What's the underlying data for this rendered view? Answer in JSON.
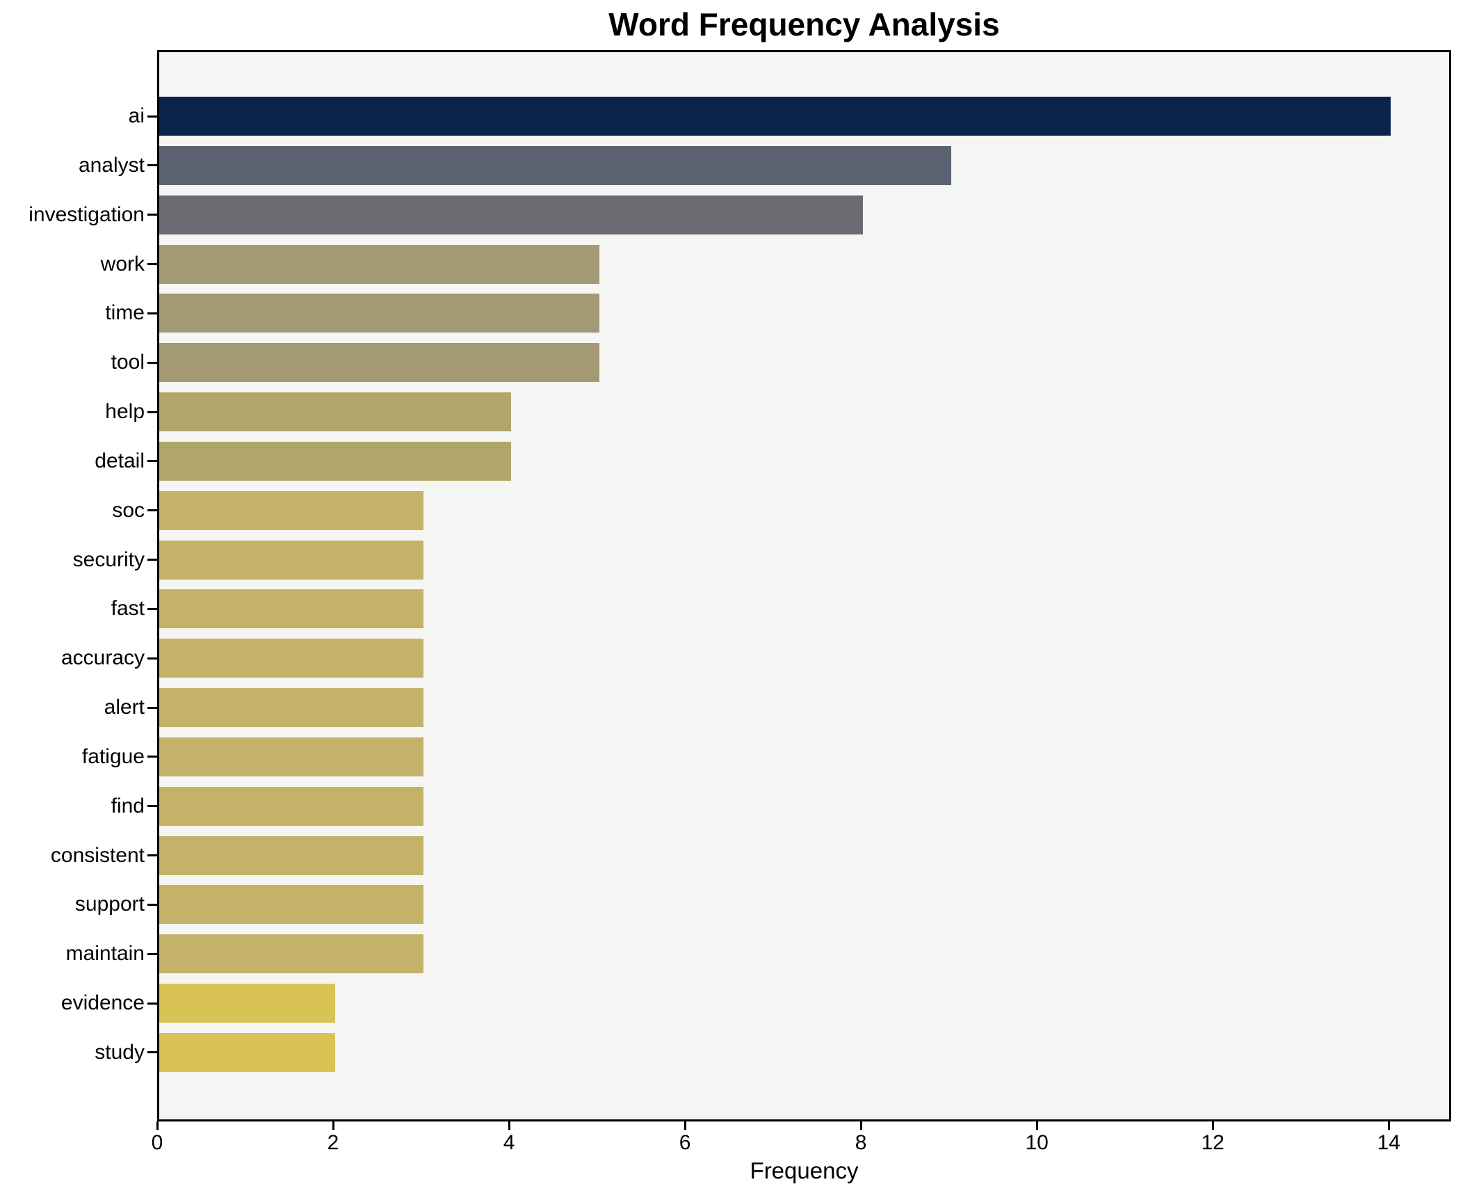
{
  "figure": {
    "title": "Word Frequency Analysis"
  },
  "chart_data": {
    "type": "bar",
    "orientation": "horizontal",
    "title": "Word Frequency Analysis",
    "xlabel": "Frequency",
    "ylabel": "",
    "xlim": [
      0,
      14.71
    ],
    "x_ticks": [
      0,
      2,
      4,
      6,
      8,
      10,
      12,
      14
    ],
    "grid": false,
    "legend": false,
    "plot_background": "#f5f5f3",
    "frame_color": "#000000",
    "categories": [
      "ai",
      "analyst",
      "investigation",
      "work",
      "time",
      "tool",
      "help",
      "detail",
      "soc",
      "security",
      "fast",
      "accuracy",
      "alert",
      "fatigue",
      "find",
      "consistent",
      "support",
      "maintain",
      "evidence",
      "study"
    ],
    "values": [
      14,
      9,
      8,
      5,
      5,
      5,
      4,
      4,
      3,
      3,
      3,
      3,
      3,
      3,
      3,
      3,
      3,
      3,
      2,
      2
    ],
    "bar_colors": [
      "#0a2349",
      "#5c6271",
      "#6a6a70",
      "#a39a75",
      "#a39a75",
      "#a39a75",
      "#b1a669",
      "#b1a669",
      "#c4b269",
      "#c4b269",
      "#c4b269",
      "#c4b269",
      "#c4b269",
      "#c4b269",
      "#c4b269",
      "#c4b269",
      "#c4b269",
      "#c4b269",
      "#d8c354",
      "#d8c354"
    ]
  }
}
